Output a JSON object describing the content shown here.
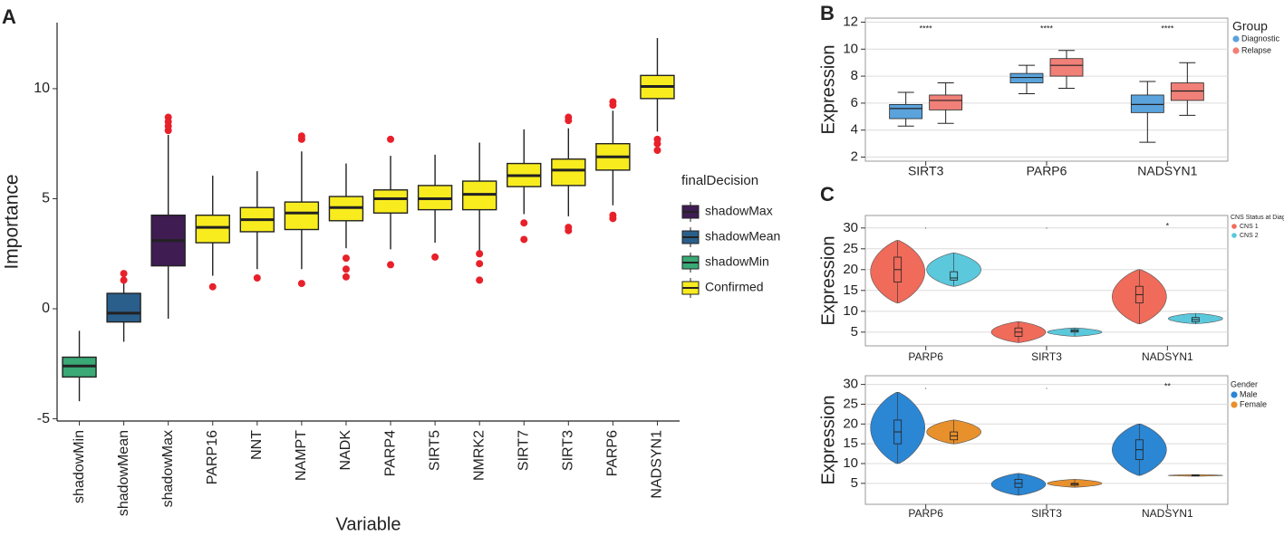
{
  "chart_data": [
    {
      "type": "box",
      "panel": "A",
      "ylabel": "Importance",
      "xlabel": "Variable",
      "categories": [
        "shadowMin",
        "shadowMean",
        "shadowMax",
        "PARP16",
        "NNT",
        "NAMPT",
        "NADK",
        "PARP4",
        "SIRT5",
        "NMRK2",
        "SIRT7",
        "SIRT3",
        "PARP6",
        "NADSYN1"
      ],
      "boxes": [
        {
          "whislo": -4.2,
          "q1": -3.1,
          "med": -2.6,
          "q3": -2.2,
          "whishi": -1.0,
          "fliers": [],
          "color": "#3aa976"
        },
        {
          "whislo": -1.5,
          "q1": -0.6,
          "med": -0.2,
          "q3": 0.7,
          "whishi": 1.15,
          "fliers": [
            1.3,
            1.6
          ],
          "color": "#2b5f8b"
        },
        {
          "whislo": -0.45,
          "q1": 1.95,
          "med": 3.1,
          "q3": 4.25,
          "whishi": 7.9,
          "fliers": [
            8.1,
            8.3,
            8.5,
            8.7
          ],
          "color": "#3f1c52"
        },
        {
          "whislo": 1.5,
          "q1": 3.0,
          "med": 3.7,
          "q3": 4.25,
          "whishi": 6.05,
          "fliers": [
            1.0
          ],
          "color": "#f8ec1f"
        },
        {
          "whislo": 1.8,
          "q1": 3.5,
          "med": 4.05,
          "q3": 4.6,
          "whishi": 6.25,
          "fliers": [
            1.4
          ],
          "color": "#f8ec1f"
        },
        {
          "whislo": 1.8,
          "q1": 3.6,
          "med": 4.35,
          "q3": 4.85,
          "whishi": 7.15,
          "fliers": [
            7.7,
            7.85,
            1.15
          ],
          "color": "#f8ec1f"
        },
        {
          "whislo": 2.75,
          "q1": 4.0,
          "med": 4.6,
          "q3": 5.1,
          "whishi": 6.6,
          "fliers": [
            2.3,
            1.8,
            1.45
          ],
          "color": "#f8ec1f"
        },
        {
          "whislo": 2.7,
          "q1": 4.35,
          "med": 5.0,
          "q3": 5.4,
          "whishi": 6.95,
          "fliers": [
            7.7,
            2.0
          ],
          "color": "#f8ec1f"
        },
        {
          "whislo": 3.0,
          "q1": 4.5,
          "med": 5.0,
          "q3": 5.6,
          "whishi": 7.0,
          "fliers": [
            2.35
          ],
          "color": "#f8ec1f"
        },
        {
          "whislo": 2.6,
          "q1": 4.5,
          "med": 5.2,
          "q3": 5.8,
          "whishi": 7.55,
          "fliers": [
            2.5,
            2.05,
            1.3
          ],
          "color": "#f8ec1f"
        },
        {
          "whislo": 4.3,
          "q1": 5.55,
          "med": 6.05,
          "q3": 6.6,
          "whishi": 8.15,
          "fliers": [
            3.9,
            3.15
          ],
          "color": "#f8ec1f"
        },
        {
          "whislo": 4.2,
          "q1": 5.6,
          "med": 6.3,
          "q3": 6.8,
          "whishi": 8.2,
          "fliers": [
            8.7,
            8.55,
            3.7,
            3.55
          ],
          "color": "#f8ec1f"
        },
        {
          "whislo": 4.7,
          "q1": 6.3,
          "med": 6.9,
          "q3": 7.5,
          "whishi": 9.0,
          "fliers": [
            9.4,
            9.25,
            4.25,
            4.1
          ],
          "color": "#f8ec1f"
        },
        {
          "whislo": 8.05,
          "q1": 9.55,
          "med": 10.1,
          "q3": 10.6,
          "whishi": 12.3,
          "fliers": [
            7.7,
            7.5,
            7.2
          ],
          "color": "#f8ec1f"
        }
      ],
      "flier_color": "#e8202a",
      "ylim": [
        -5.1,
        13
      ],
      "yticks": [
        -5,
        0,
        5,
        10
      ],
      "grid": false,
      "legend_title": "finalDecision",
      "legend": [
        {
          "name": "shadowMax",
          "color": "#3f1c52"
        },
        {
          "name": "shadowMean",
          "color": "#2b5f8b"
        },
        {
          "name": "shadowMin",
          "color": "#3aa976"
        },
        {
          "name": "Confirmed",
          "color": "#f8ec1f"
        }
      ]
    },
    {
      "type": "box",
      "panel": "B",
      "ylabel": "Expression",
      "categories": [
        "SIRT3",
        "PARP6",
        "NADSYN1"
      ],
      "series": [
        {
          "name": "Diagnostic",
          "color": "#5aa3dc",
          "boxes": [
            {
              "whislo": 4.3,
              "q1": 4.85,
              "med": 5.6,
              "q3": 5.9,
              "whishi": 6.8
            },
            {
              "whislo": 6.7,
              "q1": 7.5,
              "med": 7.9,
              "q3": 8.2,
              "whishi": 8.8
            },
            {
              "whislo": 3.1,
              "q1": 5.3,
              "med": 5.9,
              "q3": 6.6,
              "whishi": 7.6
            }
          ]
        },
        {
          "name": "Relapse",
          "color": "#f08078",
          "boxes": [
            {
              "whislo": 4.5,
              "q1": 5.5,
              "med": 6.2,
              "q3": 6.6,
              "whishi": 7.5
            },
            {
              "whislo": 7.1,
              "q1": 8.0,
              "med": 8.8,
              "q3": 9.3,
              "whishi": 9.9
            },
            {
              "whislo": 5.1,
              "q1": 6.2,
              "med": 6.9,
              "q3": 7.5,
              "whishi": 9.0
            }
          ]
        }
      ],
      "annotations": [
        "****",
        "****",
        "****"
      ],
      "ylim": [
        1.7,
        12.3
      ],
      "yticks": [
        2,
        4,
        6,
        8,
        10,
        12
      ],
      "grid": true,
      "legend_title": "Group"
    },
    {
      "type": "violin",
      "panel": "C",
      "ylabel": "Expression",
      "categories": [
        "PARP6",
        "SIRT3",
        "NADSYN1"
      ],
      "series": [
        {
          "name": "CNS 1",
          "color": "#f06b5a",
          "violins": [
            {
              "min": 12,
              "q1": 17,
              "med": 20,
              "q3": 23,
              "max": 27
            },
            {
              "min": 2.5,
              "q1": 4,
              "med": 5,
              "q3": 6,
              "max": 7.5
            },
            {
              "min": 7,
              "q1": 12,
              "med": 14,
              "q3": 16,
              "max": 20
            }
          ]
        },
        {
          "name": "CNS 2",
          "color": "#5bc8dc",
          "violins": [
            {
              "min": 16,
              "q1": 17.5,
              "med": 18,
              "q3": 19.5,
              "max": 24
            },
            {
              "min": 4,
              "q1": 5,
              "med": 5.3,
              "q3": 5.6,
              "max": 6
            },
            {
              "min": 7,
              "q1": 7.5,
              "med": 8,
              "q3": 8.5,
              "max": 9.5
            }
          ]
        }
      ],
      "annotations": [
        ".",
        ".",
        "*"
      ],
      "ylim": [
        1.7,
        33
      ],
      "yticks": [
        5,
        10,
        15,
        20,
        25,
        30
      ],
      "grid": true,
      "legend_title": "CNS Status at Diagnosis"
    },
    {
      "type": "violin",
      "ylabel": "Expression",
      "categories": [
        "PARP6",
        "SIRT3",
        "NADSYN1"
      ],
      "series": [
        {
          "name": "Male",
          "color": "#2b86d4",
          "violins": [
            {
              "min": 10,
              "q1": 15,
              "med": 18,
              "q3": 21,
              "max": 28
            },
            {
              "min": 2,
              "q1": 4,
              "med": 5,
              "q3": 6,
              "max": 7.5
            },
            {
              "min": 7,
              "q1": 11,
              "med": 13.5,
              "q3": 16,
              "max": 20
            }
          ]
        },
        {
          "name": "Female",
          "color": "#e8902c",
          "violins": [
            {
              "min": 15,
              "q1": 16,
              "med": 17,
              "q3": 18,
              "max": 21
            },
            {
              "min": 4,
              "q1": 4.5,
              "med": 4.8,
              "q3": 5,
              "max": 6
            },
            {
              "min": 6.8,
              "q1": 6.9,
              "med": 7,
              "q3": 7.1,
              "max": 7.2
            }
          ]
        }
      ],
      "annotations": [
        ".",
        ".",
        "**"
      ],
      "ylim": [
        -0.3,
        32.2
      ],
      "yticks": [
        5,
        10,
        15,
        20,
        25,
        30
      ],
      "grid": true,
      "legend_title": "Gender"
    }
  ]
}
